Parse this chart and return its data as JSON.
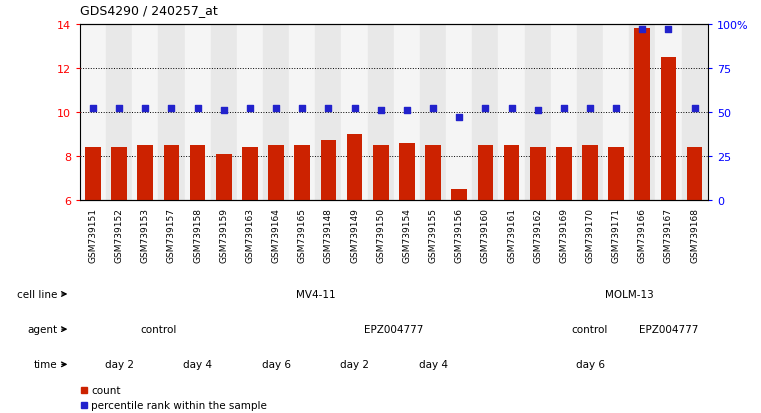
{
  "title": "GDS4290 / 240257_at",
  "samples": [
    "GSM739151",
    "GSM739152",
    "GSM739153",
    "GSM739157",
    "GSM739158",
    "GSM739159",
    "GSM739163",
    "GSM739164",
    "GSM739165",
    "GSM739148",
    "GSM739149",
    "GSM739150",
    "GSM739154",
    "GSM739155",
    "GSM739156",
    "GSM739160",
    "GSM739161",
    "GSM739162",
    "GSM739169",
    "GSM739170",
    "GSM739171",
    "GSM739166",
    "GSM739167",
    "GSM739168"
  ],
  "bar_values": [
    8.4,
    8.4,
    8.5,
    8.5,
    8.5,
    8.1,
    8.4,
    8.5,
    8.5,
    8.7,
    9.0,
    8.5,
    8.6,
    8.5,
    6.5,
    8.5,
    8.5,
    8.4,
    8.4,
    8.5,
    8.4,
    13.8,
    12.5,
    8.4
  ],
  "percentile_values": [
    52,
    52,
    52,
    52,
    52,
    51,
    52,
    52,
    52,
    52,
    52,
    51,
    51,
    52,
    47,
    52,
    52,
    51,
    52,
    52,
    52,
    97,
    97,
    52
  ],
  "ylim_left": [
    6,
    14
  ],
  "ylim_right": [
    0,
    100
  ],
  "yticks_left": [
    6,
    8,
    10,
    12,
    14
  ],
  "yticks_right": [
    0,
    25,
    50,
    75,
    100
  ],
  "bar_color": "#cc2200",
  "dot_color": "#2222cc",
  "cell_line_segs": [
    {
      "label": "MV4-11",
      "start": 0,
      "end": 18,
      "color": "#aaddaa"
    },
    {
      "label": "MOLM-13",
      "start": 18,
      "end": 24,
      "color": "#44bb44"
    }
  ],
  "agent_segs": [
    {
      "label": "control",
      "start": 0,
      "end": 6,
      "color": "#ccbbee"
    },
    {
      "label": "EPZ004777",
      "start": 6,
      "end": 18,
      "color": "#9977cc"
    },
    {
      "label": "control",
      "start": 18,
      "end": 21,
      "color": "#ccbbee"
    },
    {
      "label": "EPZ004777",
      "start": 21,
      "end": 24,
      "color": "#9977cc"
    }
  ],
  "time_segs": [
    {
      "label": "day 2",
      "start": 0,
      "end": 3,
      "color": "#ffbbbb"
    },
    {
      "label": "day 4",
      "start": 3,
      "end": 6,
      "color": "#ee9999"
    },
    {
      "label": "day 6",
      "start": 6,
      "end": 9,
      "color": "#dd7777"
    },
    {
      "label": "day 2",
      "start": 9,
      "end": 12,
      "color": "#ffbbbb"
    },
    {
      "label": "day 4",
      "start": 12,
      "end": 15,
      "color": "#ee9999"
    },
    {
      "label": "day 6",
      "start": 15,
      "end": 24,
      "color": "#dd7777"
    }
  ],
  "row_labels": [
    "cell line",
    "agent",
    "time"
  ],
  "background_color": "#ffffff",
  "chart_bg_colors": [
    "#f5f5f5",
    "#e8e8e8"
  ]
}
